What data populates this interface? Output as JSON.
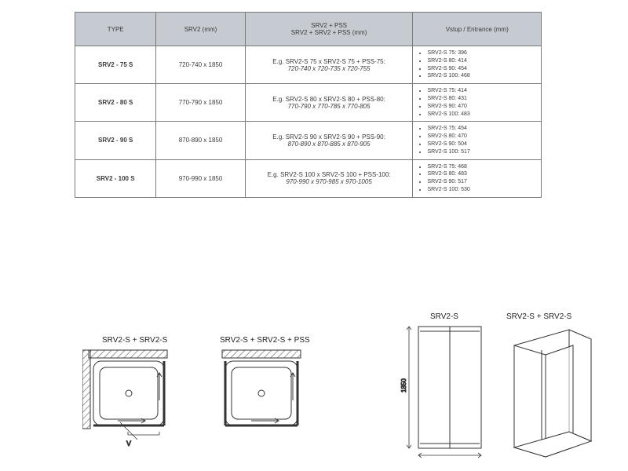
{
  "table": {
    "headers": {
      "type": "TYPE",
      "srv2": "SRV2 (mm)",
      "combo": "SRV2 + PSS\nSRV2 + SRV2 + PSS (mm)",
      "entrance": "Vstup / Entrance (mm)"
    },
    "header_bg": "#c5cbd0",
    "border_color": "#7a7a7a",
    "text_color": "#3a3a3a",
    "rows": [
      {
        "type": "SRV2 - 75 S",
        "dim": "720-740 x 1850",
        "combo_line1": "E.g. SRV2-S 75 x SRV2-S 75 + PSS-75:",
        "combo_line2": "720-740 x 720-735 x 720-755",
        "entrance": [
          "SRV2-S 75:   396",
          "SRV2-S 80:   414",
          "SRV2-S 90:   454",
          "SRV2-S 100: 468"
        ]
      },
      {
        "type": "SRV2 - 80 S",
        "dim": "770-790 x 1850",
        "combo_line1": "E.g. SRV2-S 80 x SRV2-S 80 + PSS-80:",
        "combo_line2": "770-790 x 770-785 x 770-805",
        "entrance": [
          "SRV2-S 75:   414",
          "SRV2-S 80:   431",
          "SRV2-S 90:   470",
          "SRV2-S 100: 483"
        ]
      },
      {
        "type": "SRV2 - 90 S",
        "dim": "870-890 x 1850",
        "combo_line1": "E.g. SRV2-S 90 x SRV2-S 90 + PSS-90:",
        "combo_line2": "870-890 x 870-885 x 870-905",
        "entrance": [
          "SRV2-S 75:   454",
          "SRV2-S 80:   470",
          "SRV2-S 90:   504",
          "SRV2-S 100: 517"
        ]
      },
      {
        "type": "SRV2 - 100 S",
        "dim": "970-990 x 1850",
        "combo_line1": "E.g. SRV2-S 100 x SRV2-S 100 + PSS-100:",
        "combo_line2": "970-990 x 970-985 x 970-1005",
        "entrance": [
          "SRV2-S 75:   468",
          "SRV2-S 80:   483",
          "SRV2-S 90:   517",
          "SRV2-S 100: 530"
        ]
      }
    ]
  },
  "diagrams": {
    "label1": "SRV2-S + SRV2-S",
    "label2": "SRV2-S + SRV2-S + PSS",
    "label3": "SRV2-S",
    "label4": "SRV2-S + SRV2-S",
    "height_label": "1850",
    "v_label": "V",
    "stroke_color": "#333333",
    "hatch_color": "#999999"
  }
}
